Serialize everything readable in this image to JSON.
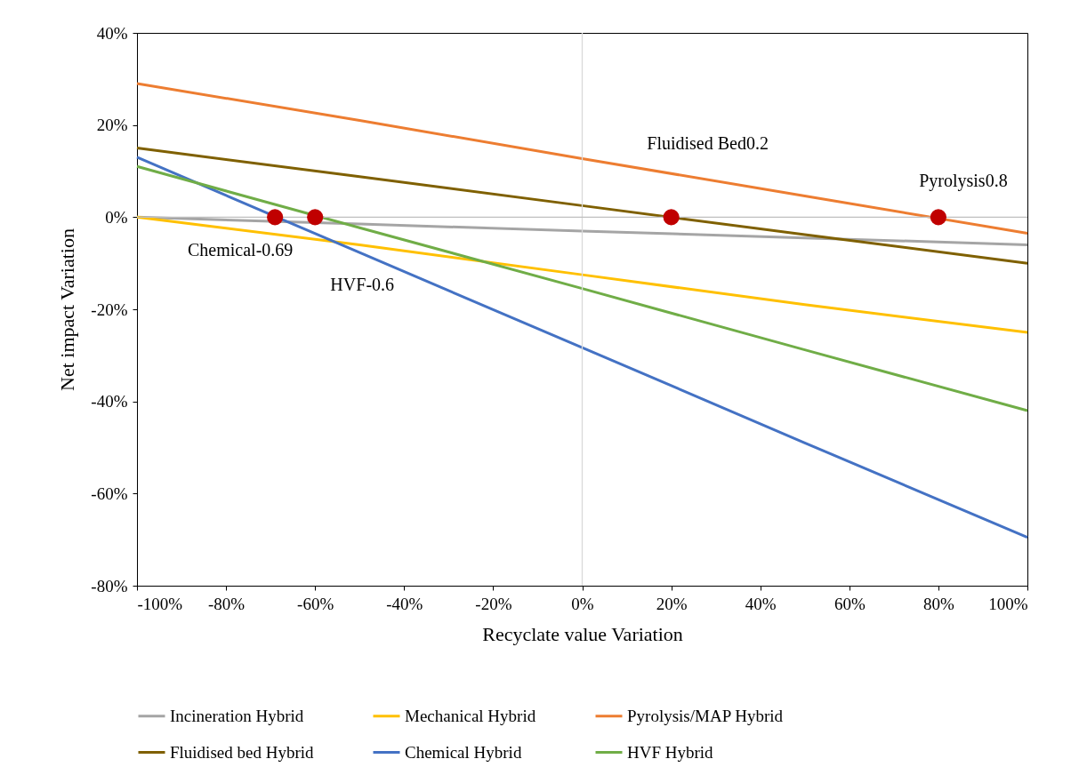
{
  "chart_data": {
    "type": "line",
    "xlabel": "Recyclate value  Variation",
    "ylabel": "Net impact Variation",
    "x": [
      -100,
      -50,
      0,
      50,
      100
    ],
    "xlim": [
      -100,
      100
    ],
    "ylim": [
      -80,
      40
    ],
    "xticks": [
      {
        "value": -100,
        "label": "-100%"
      },
      {
        "value": -80,
        "label": "-80%"
      },
      {
        "value": -60,
        "label": "-60%"
      },
      {
        "value": -40,
        "label": "-40%"
      },
      {
        "value": -20,
        "label": "-20%"
      },
      {
        "value": 0,
        "label": "0%"
      },
      {
        "value": 20,
        "label": "20%"
      },
      {
        "value": 40,
        "label": "40%"
      },
      {
        "value": 60,
        "label": "60%"
      },
      {
        "value": 80,
        "label": "80%"
      },
      {
        "value": 100,
        "label": "100%"
      }
    ],
    "yticks": [
      {
        "value": -80,
        "label": "-80%"
      },
      {
        "value": -60,
        "label": "-60%"
      },
      {
        "value": -40,
        "label": "-40%"
      },
      {
        "value": -20,
        "label": "-20%"
      },
      {
        "value": 0,
        "label": "0%"
      },
      {
        "value": 20,
        "label": "20%"
      },
      {
        "value": 40,
        "label": "40%"
      }
    ],
    "series": [
      {
        "name": "Incineration Hybrid",
        "color": "#a5a5a5",
        "values": [
          0,
          -1.5,
          -3,
          -4.5,
          -6
        ]
      },
      {
        "name": "Mechanical Hybrid",
        "color": "#ffc000",
        "values": [
          0,
          -6,
          -12.5,
          -19,
          -25
        ]
      },
      {
        "name": "Pyrolysis/MAP Hybrid",
        "color": "#ed7d31",
        "values": [
          29,
          21,
          12.7,
          4.6,
          -3.5
        ]
      },
      {
        "name": "Fluidised bed Hybrid",
        "color": "#7f6000",
        "values": [
          15,
          8.8,
          2.5,
          -3.8,
          -10
        ]
      },
      {
        "name": "Chemical Hybrid",
        "color": "#4472c4",
        "values": [
          13,
          -7.7,
          -28.3,
          -49,
          -69.5
        ]
      },
      {
        "name": "HVF Hybrid",
        "color": "#70ad47",
        "values": [
          11,
          -2.3,
          -15.5,
          -28.8,
          -42
        ]
      },
      {
        "type": "scatter",
        "color": "#c00000",
        "marker": "circle",
        "x": [
          -69,
          -60,
          20,
          80
        ],
        "values": [
          0,
          0,
          0,
          0
        ]
      }
    ],
    "ref_lines": [
      {
        "axis": "x",
        "value": 0,
        "color": "#d9d9d9"
      },
      {
        "axis": "y",
        "value": 0,
        "color": "#bfbfbf"
      }
    ],
    "annotations": [
      "Chemical-0.69",
      "HVF-0.6",
      "Fluidised Bed0.2",
      "Pyrolysis0.8"
    ],
    "legend": "bottom"
  }
}
